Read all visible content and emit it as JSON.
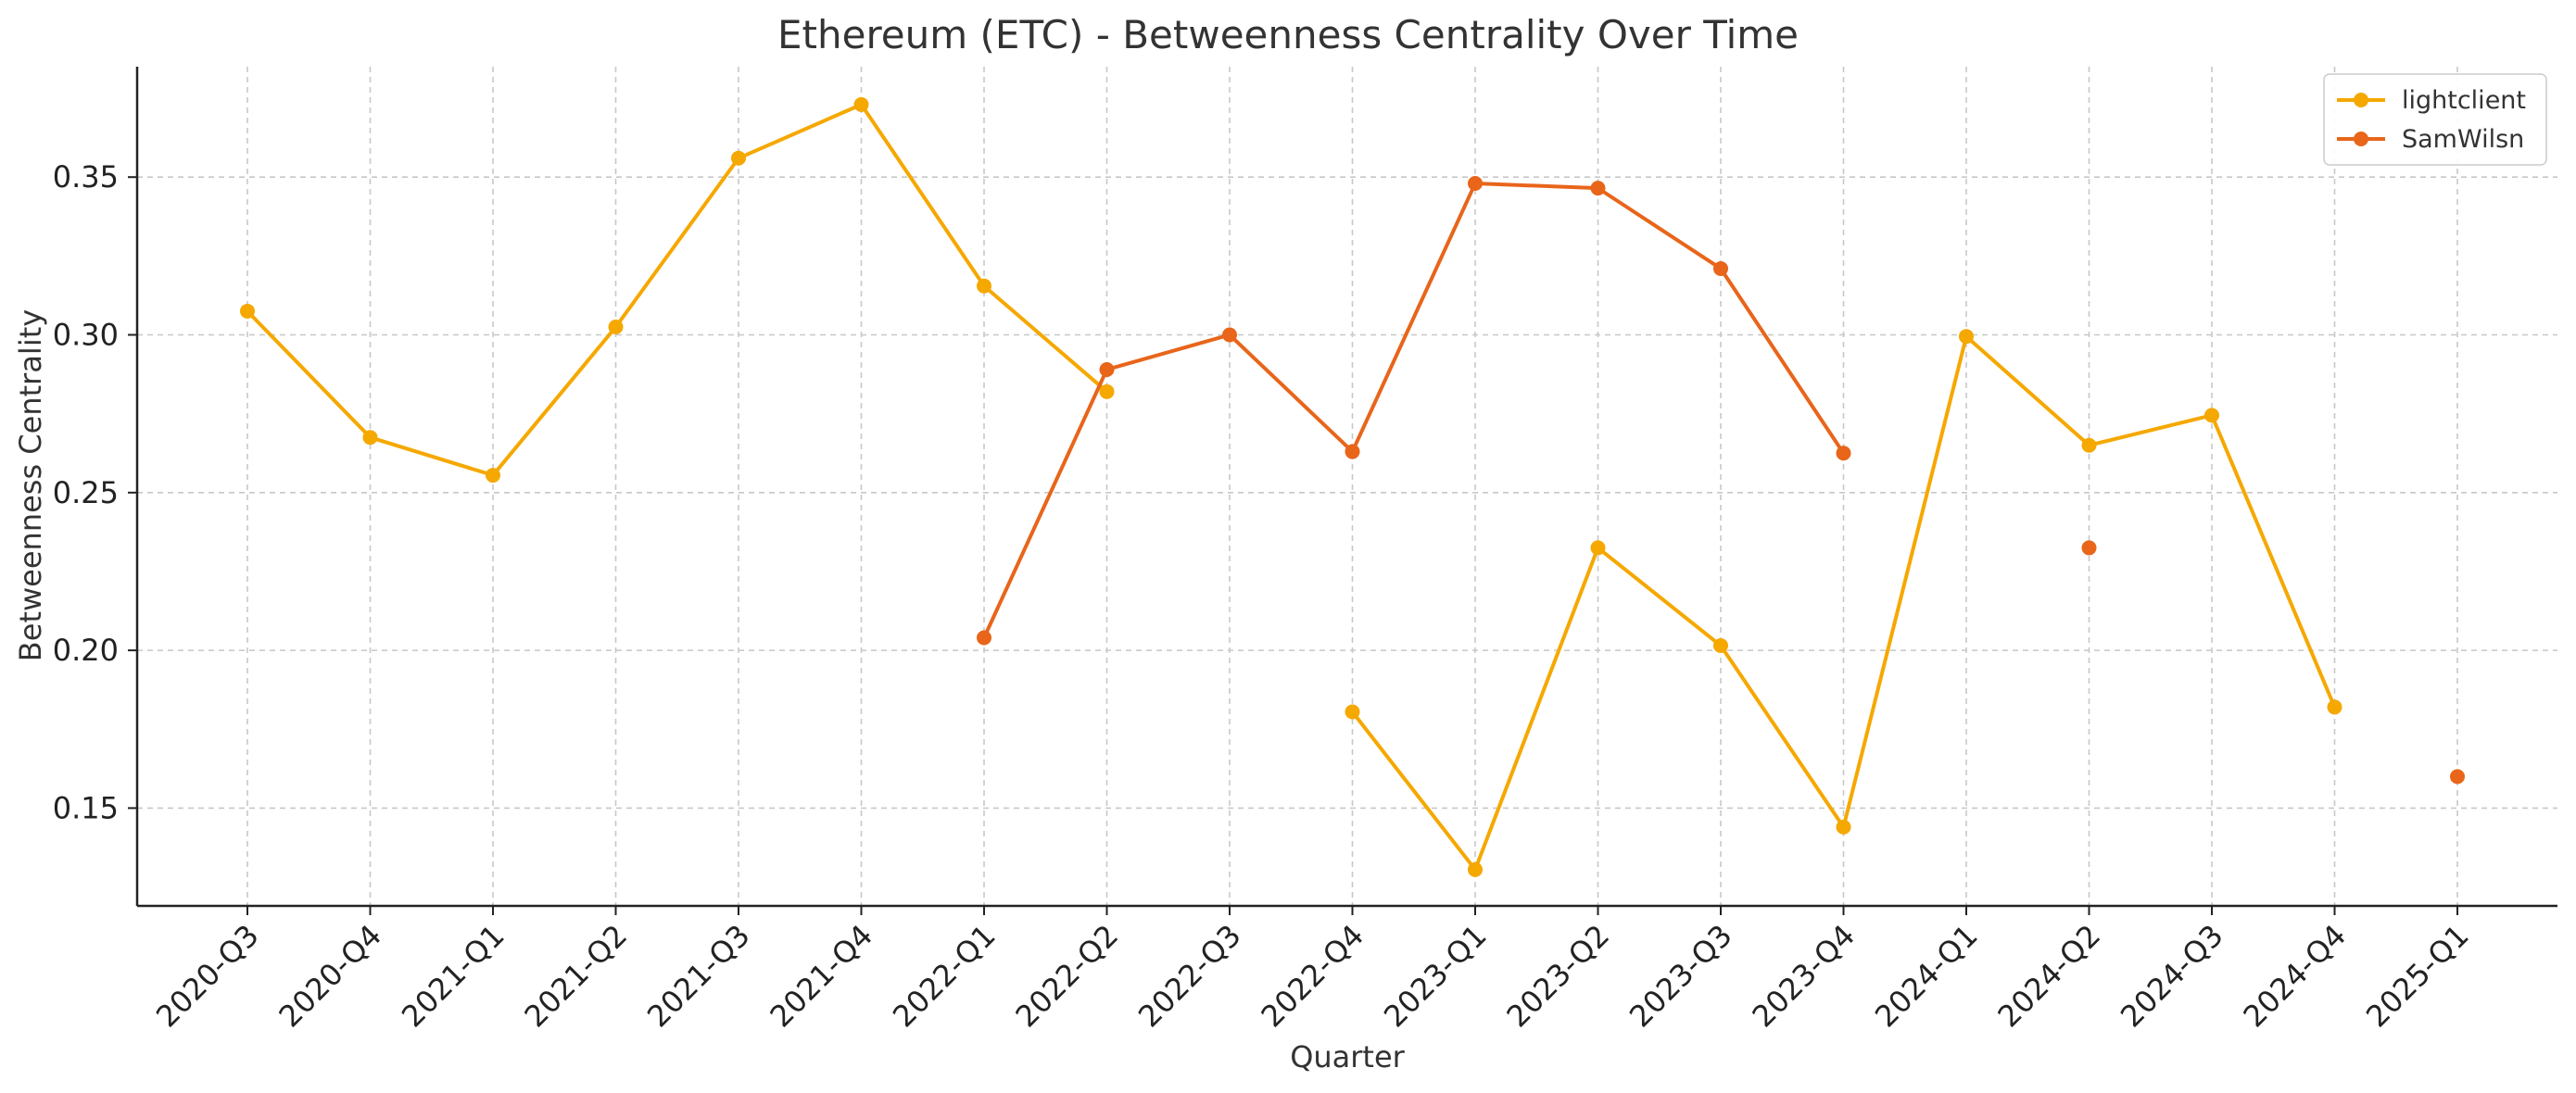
{
  "chart_data": {
    "type": "line",
    "title": "Ethereum (ETC) - Betweenness Centrality Over Time",
    "xlabel": "Quarter",
    "ylabel": "Betweenness Centrality",
    "categories": [
      "2020-Q3",
      "2020-Q4",
      "2021-Q1",
      "2021-Q2",
      "2021-Q3",
      "2021-Q4",
      "2022-Q1",
      "2022-Q2",
      "2022-Q3",
      "2022-Q4",
      "2023-Q1",
      "2023-Q2",
      "2023-Q3",
      "2023-Q4",
      "2024-Q1",
      "2024-Q2",
      "2024-Q3",
      "2024-Q4",
      "2025-Q1"
    ],
    "ylim": [
      0.119,
      0.385
    ],
    "yticks": [
      0.15,
      0.2,
      0.25,
      0.3,
      0.35
    ],
    "ytick_labels": [
      "0.15",
      "0.20",
      "0.25",
      "0.30",
      "0.35"
    ],
    "grid": true,
    "legend_position": "top-right",
    "series": [
      {
        "name": "lightclient",
        "color": "#F5A800",
        "values": [
          0.3075,
          0.2675,
          0.2555,
          0.3025,
          0.356,
          0.373,
          0.3155,
          0.282,
          null,
          0.1805,
          0.1305,
          0.2325,
          0.2015,
          0.144,
          0.2995,
          0.265,
          0.2745,
          0.182,
          null
        ]
      },
      {
        "name": "SamWilsn",
        "color": "#E8651A",
        "values": [
          null,
          null,
          null,
          null,
          null,
          null,
          0.204,
          0.289,
          0.3,
          0.263,
          0.348,
          0.3465,
          0.321,
          0.2625,
          null,
          0.2325,
          null,
          null,
          0.16
        ]
      }
    ]
  }
}
